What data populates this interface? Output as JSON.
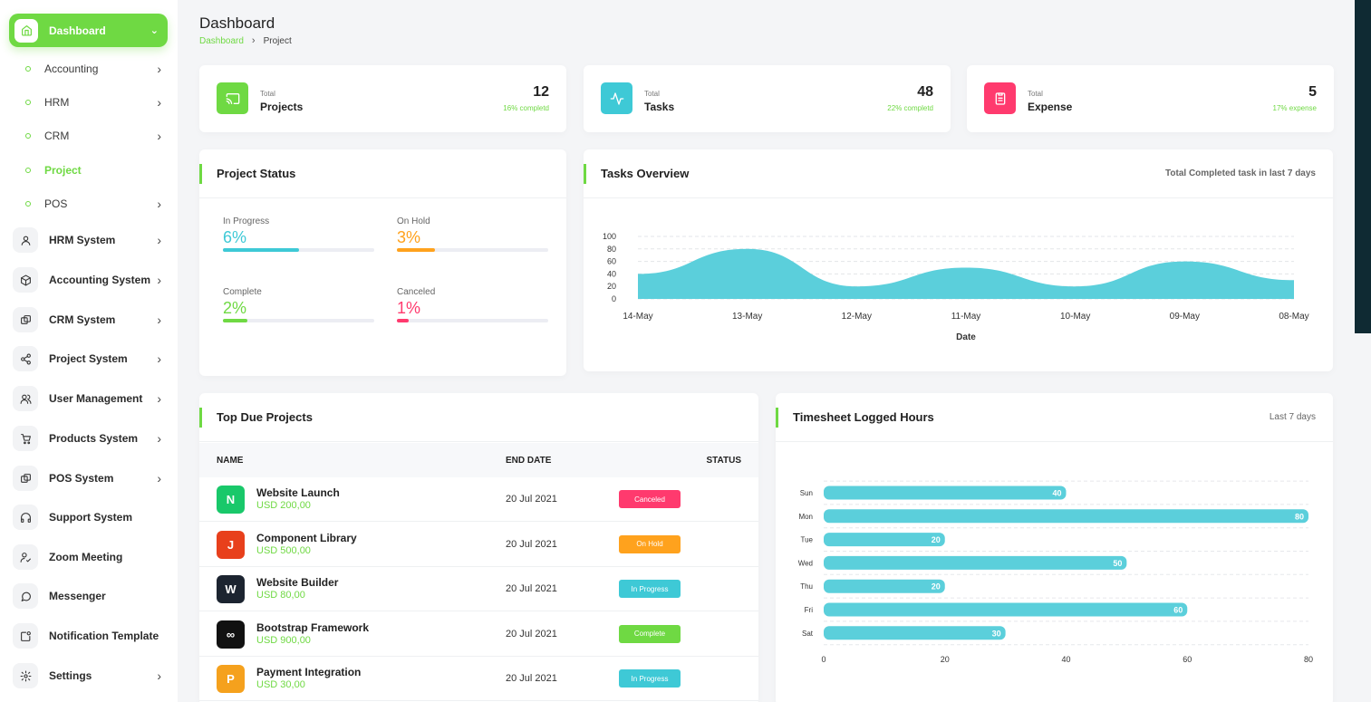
{
  "sidebar": {
    "active": {
      "label": "Dashboard",
      "icon": "home-icon"
    },
    "sub_items": [
      {
        "label": "Accounting",
        "active": false,
        "has_arrow": true
      },
      {
        "label": "HRM",
        "active": false,
        "has_arrow": true
      },
      {
        "label": "CRM",
        "active": false,
        "has_arrow": true
      },
      {
        "label": "Project",
        "active": true,
        "has_arrow": false
      },
      {
        "label": "POS",
        "active": false,
        "has_arrow": true
      }
    ],
    "items": [
      {
        "label": "HRM System",
        "icon": "user-icon",
        "has_arrow": true
      },
      {
        "label": "Accounting System",
        "icon": "box-icon",
        "has_arrow": true
      },
      {
        "label": "CRM System",
        "icon": "layers-icon",
        "has_arrow": true
      },
      {
        "label": "Project System",
        "icon": "share-icon",
        "has_arrow": true
      },
      {
        "label": "User Management",
        "icon": "users-icon",
        "has_arrow": true
      },
      {
        "label": "Products System",
        "icon": "cart-icon",
        "has_arrow": true
      },
      {
        "label": "POS System",
        "icon": "layers-icon",
        "has_arrow": true
      },
      {
        "label": "Support System",
        "icon": "headphones-icon",
        "has_arrow": false
      },
      {
        "label": "Zoom Meeting",
        "icon": "user-check-icon",
        "has_arrow": false
      },
      {
        "label": "Messenger",
        "icon": "message-icon",
        "has_arrow": false
      },
      {
        "label": "Notification Template",
        "icon": "notification-icon",
        "has_arrow": false
      },
      {
        "label": "Settings",
        "icon": "gear-icon",
        "has_arrow": true
      }
    ]
  },
  "header": {
    "title": "Dashboard",
    "breadcrumb": {
      "home": "Dashboard",
      "current": "Project"
    }
  },
  "stats": [
    {
      "small": "Total",
      "name": "Projects",
      "value": "12",
      "sub": "16% completd",
      "color": "#6fd943",
      "icon": "cast-icon"
    },
    {
      "small": "Total",
      "name": "Tasks",
      "value": "48",
      "sub": "22% completd",
      "color": "#3ec9d6",
      "icon": "activity-icon"
    },
    {
      "small": "Total",
      "name": "Expense",
      "value": "5",
      "sub": "17% expense",
      "color": "#ff3a6e",
      "icon": "report-icon"
    }
  ],
  "project_status": {
    "title": "Project Status",
    "items": [
      {
        "label": "In Progress",
        "value": "6%",
        "fill": 0.5,
        "color": "#3ec9d6"
      },
      {
        "label": "On Hold",
        "value": "3%",
        "fill": 0.25,
        "color": "#ffa21d"
      },
      {
        "label": "Complete",
        "value": "2%",
        "fill": 0.16,
        "color": "#6fd943"
      },
      {
        "label": "Canceled",
        "value": "1%",
        "fill": 0.08,
        "color": "#ff3a6e"
      }
    ]
  },
  "tasks_overview": {
    "title": "Tasks Overview",
    "subtitle": "Total Completed task in last 7 days"
  },
  "top_due": {
    "title": "Top Due Projects",
    "columns": [
      "NAME",
      "END DATE",
      "STATUS"
    ],
    "rows": [
      {
        "name": "Website Launch",
        "price": "USD 200,00",
        "date": "20 Jul 2021",
        "status": "Canceled",
        "status_color": "#ff3a6e",
        "logo_bg": "#19c86a",
        "logo_char": "N"
      },
      {
        "name": "Component Library",
        "price": "USD 500,00",
        "date": "20 Jul 2021",
        "status": "On Hold",
        "status_color": "#ffa21d",
        "logo_bg": "#e8401c",
        "logo_char": "J"
      },
      {
        "name": "Website Builder",
        "price": "USD 80,00",
        "date": "20 Jul 2021",
        "status": "In Progress",
        "status_color": "#3ec9d6",
        "logo_bg": "#1c2430",
        "logo_char": "W"
      },
      {
        "name": "Bootstrap Framework",
        "price": "USD 900,00",
        "date": "20 Jul 2021",
        "status": "Complete",
        "status_color": "#6fd943",
        "logo_bg": "#111111",
        "logo_char": "∞"
      },
      {
        "name": "Payment Integration",
        "price": "USD 30,00",
        "date": "20 Jul 2021",
        "status": "In Progress",
        "status_color": "#3ec9d6",
        "logo_bg": "#f5a11d",
        "logo_char": "P"
      }
    ]
  },
  "timesheet": {
    "title": "Timesheet Logged Hours",
    "subtitle": "Last 7 days"
  },
  "chart_data": [
    {
      "type": "area",
      "x": [
        "14-May",
        "13-May",
        "12-May",
        "11-May",
        "10-May",
        "09-May",
        "08-May"
      ],
      "series": [
        {
          "values": [
            40,
            80,
            20,
            50,
            20,
            60,
            30
          ]
        }
      ],
      "xlabel": "Date",
      "ylabel": "",
      "ylim": [
        0,
        100
      ],
      "yticks": [
        0,
        20,
        40,
        60,
        80,
        100
      ],
      "color": "#5bcfdb",
      "grid": true
    },
    {
      "type": "bar",
      "orientation": "horizontal",
      "categories": [
        "Sun",
        "Mon",
        "Tue",
        "Wed",
        "Thu",
        "Fri",
        "Sat"
      ],
      "values": [
        40,
        80,
        20,
        50,
        20,
        60,
        30
      ],
      "xlim": [
        0,
        80
      ],
      "xticks": [
        0,
        20,
        40,
        60,
        80
      ],
      "color": "#5bcfdb",
      "grid": true
    }
  ]
}
